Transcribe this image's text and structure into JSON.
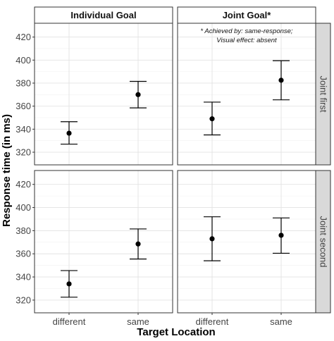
{
  "chart_data": {
    "type": "scatter",
    "xlabel": "Target Location",
    "ylabel": "Response time (in ms)",
    "categories": [
      "different",
      "same"
    ],
    "y_ticks": [
      320,
      340,
      360,
      380,
      400,
      420
    ],
    "ylim": [
      309,
      432
    ],
    "grid": true,
    "column_labels": [
      "Individual Goal",
      "Joint Goal*"
    ],
    "row_labels": [
      "Joint first",
      "Joint second"
    ],
    "annotation": {
      "line1": "* Achieved by: same-response;",
      "line2": "Visual effect: absent"
    },
    "panels": [
      {
        "column": "Individual Goal",
        "row": "Joint first",
        "points": [
          {
            "x": "different",
            "mean": 336.5,
            "lower": 327,
            "upper": 346.5
          },
          {
            "x": "same",
            "mean": 370,
            "lower": 358.5,
            "upper": 381.5
          }
        ]
      },
      {
        "column": "Joint Goal*",
        "row": "Joint first",
        "points": [
          {
            "x": "different",
            "mean": 349,
            "lower": 335,
            "upper": 363.5
          },
          {
            "x": "same",
            "mean": 382.5,
            "lower": 365.5,
            "upper": 399.5
          }
        ]
      },
      {
        "column": "Individual Goal",
        "row": "Joint second",
        "points": [
          {
            "x": "different",
            "mean": 334,
            "lower": 322.5,
            "upper": 345.5
          },
          {
            "x": "same",
            "mean": 368.5,
            "lower": 355.5,
            "upper": 381.5
          }
        ]
      },
      {
        "column": "Joint Goal*",
        "row": "Joint second",
        "points": [
          {
            "x": "different",
            "mean": 373,
            "lower": 354,
            "upper": 392
          },
          {
            "x": "same",
            "mean": 376,
            "lower": 360.5,
            "upper": 391
          }
        ]
      }
    ]
  }
}
